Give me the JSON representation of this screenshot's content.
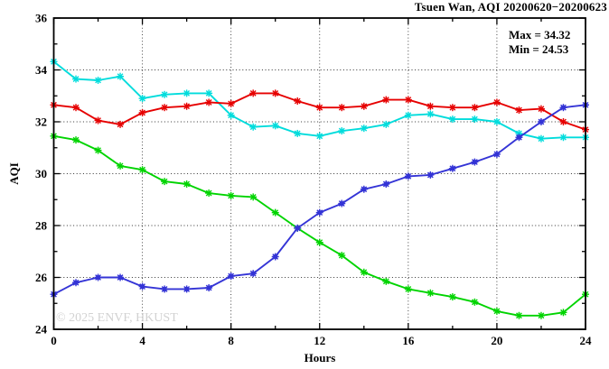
{
  "title": "Tsuen Wan, AQI 20200620−20200623",
  "legend": {
    "max_label": "Max = 34.32",
    "min_label": "Min = 24.53"
  },
  "watermark": "© 2025 ENVF, HKUST",
  "colors": {
    "cyan_line": "#00dcdc",
    "red_line": "#e60000",
    "green_line": "#00d400",
    "blue_line": "#3434d6",
    "grid": "#333333",
    "watermark": "#d2d2d2"
  },
  "chart_data": {
    "type": "line",
    "title": "Tsuen Wan, AQI 20200620−20200623",
    "xlabel": "Hours",
    "ylabel": "AQI",
    "xlim": [
      0,
      24
    ],
    "ylim": [
      24,
      36
    ],
    "xticks": [
      0,
      4,
      8,
      12,
      16,
      20,
      24
    ],
    "yticks": [
      24,
      26,
      28,
      30,
      32,
      34,
      36
    ],
    "grid": true,
    "annotations": {
      "max": 34.32,
      "min": 24.53
    },
    "x": [
      0,
      1,
      2,
      3,
      4,
      5,
      6,
      7,
      8,
      9,
      10,
      11,
      12,
      13,
      14,
      15,
      16,
      17,
      18,
      19,
      20,
      21,
      22,
      23,
      24
    ],
    "series": [
      {
        "name": "series-1-cyan",
        "color": "#00dcdc",
        "marker": "asterisk",
        "values": [
          34.32,
          33.65,
          33.6,
          33.75,
          32.9,
          33.05,
          33.1,
          33.1,
          32.25,
          31.8,
          31.85,
          31.55,
          31.45,
          31.65,
          31.75,
          31.9,
          32.25,
          32.3,
          32.1,
          32.1,
          32.0,
          31.55,
          31.35,
          31.4,
          31.4
        ]
      },
      {
        "name": "series-2-red",
        "color": "#e60000",
        "marker": "asterisk",
        "values": [
          32.65,
          32.55,
          32.05,
          31.9,
          32.35,
          32.55,
          32.6,
          32.75,
          32.7,
          33.1,
          33.1,
          32.8,
          32.55,
          32.55,
          32.6,
          32.85,
          32.85,
          32.6,
          32.55,
          32.55,
          32.75,
          32.45,
          32.5,
          32.0,
          31.7
        ]
      },
      {
        "name": "series-3-green",
        "color": "#00d400",
        "marker": "asterisk",
        "values": [
          31.45,
          31.3,
          30.9,
          30.3,
          30.15,
          29.7,
          29.6,
          29.25,
          29.15,
          29.1,
          28.5,
          27.9,
          27.35,
          26.85,
          26.2,
          25.85,
          25.55,
          25.4,
          25.25,
          25.05,
          24.7,
          24.53,
          24.53,
          24.65,
          25.35
        ]
      },
      {
        "name": "series-4-blue",
        "color": "#3434d6",
        "marker": "square-asterisk",
        "values": [
          25.35,
          25.8,
          26.0,
          26.0,
          25.65,
          25.55,
          25.55,
          25.6,
          26.05,
          26.15,
          26.8,
          27.9,
          28.5,
          28.85,
          29.4,
          29.6,
          29.9,
          29.95,
          30.2,
          30.45,
          30.75,
          31.4,
          32.0,
          32.55,
          32.65
        ]
      }
    ]
  }
}
